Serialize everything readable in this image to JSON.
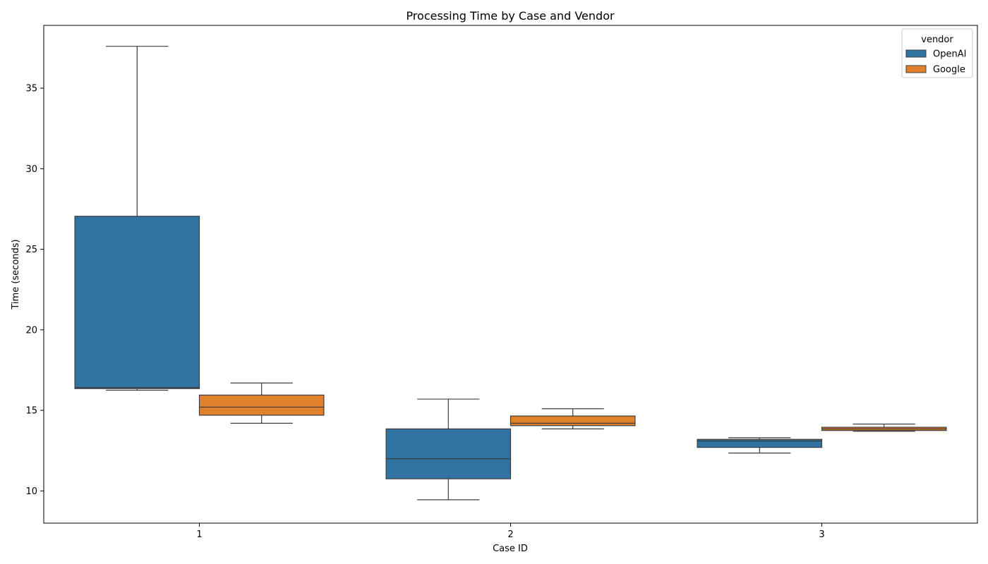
{
  "chart_data": {
    "type": "box",
    "title": "Processing Time by Case and Vendor",
    "xlabel": "Case ID",
    "ylabel": "Time (seconds)",
    "categories": [
      "1",
      "2",
      "3"
    ],
    "yticks": [
      10,
      15,
      20,
      25,
      30,
      35
    ],
    "ylim": [
      8.0,
      38.9
    ],
    "grid": false,
    "legend": {
      "title": "vendor",
      "placement": "top-right"
    },
    "series": [
      {
        "name": "OpenAI",
        "color": "#3274a1",
        "boxes": [
          {
            "whisker_low": 16.25,
            "q1": 16.35,
            "median": 16.42,
            "q3": 27.05,
            "whisker_high": 37.6
          },
          {
            "whisker_low": 9.45,
            "q1": 10.75,
            "median": 12.0,
            "q3": 13.85,
            "whisker_high": 15.7
          },
          {
            "whisker_low": 12.35,
            "q1": 12.7,
            "median": 13.1,
            "q3": 13.2,
            "whisker_high": 13.3
          }
        ]
      },
      {
        "name": "Google",
        "color": "#e1812c",
        "boxes": [
          {
            "whisker_low": 14.2,
            "q1": 14.7,
            "median": 15.2,
            "q3": 15.95,
            "whisker_high": 16.7
          },
          {
            "whisker_low": 13.85,
            "q1": 14.05,
            "median": 14.2,
            "q3": 14.65,
            "whisker_high": 15.1
          },
          {
            "whisker_low": 13.7,
            "q1": 13.75,
            "median": 13.85,
            "q3": 13.95,
            "whisker_high": 14.15
          }
        ]
      }
    ]
  }
}
